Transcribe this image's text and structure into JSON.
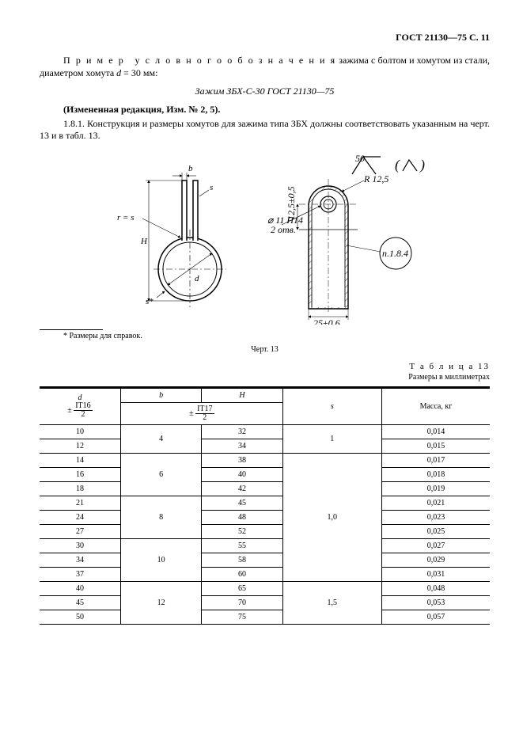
{
  "header": {
    "standard": "ГОСТ 21130—75 С. 11"
  },
  "text": {
    "p1a": "П р и м е р",
    "p1b": "у с л о в н о г о   о б о з н а ч е н и я",
    "p1c": " зажима с болтом и хомутом из стали, диаметром хомута ",
    "p1d": "d",
    "p1e": " = 30 мм:",
    "caption_item": "Зажим ЗБХ-С-30 ГОСТ 21130—75",
    "changed": "(Измененная редакция, Изм. № 2, 5).",
    "p2": "1.8.1.  Конструкция и размеры хомутов для зажима типа ЗБХ должны соответствовать указанным на черт. 13 и в табл. 13.",
    "footnote": "* Размеры для справок.",
    "fig_caption": "Черт. 13",
    "table_label": "Т а б л и ц а 13",
    "table_units": "Размеры в миллиметрах",
    "surface_val": "50"
  },
  "diagram": {
    "labels": {
      "b": "b",
      "s": "s",
      "H": "H",
      "r_eq_s": "r = s",
      "s_star": "s*",
      "d": "d",
      "top_dim": "12,5±0,5",
      "hole": "⌀ 11 H14",
      "hole2": "2 отв.",
      "radius": "R 12,5",
      "bottom": "25±0,6",
      "bubble": "п.1.8.4"
    }
  },
  "table": {
    "headers": {
      "d": "d",
      "d_tol_num": "IT16",
      "d_tol_den": "2",
      "b": "b",
      "H": "H",
      "bh_tol_num": "IT17",
      "bh_tol_den": "2",
      "s": "s",
      "mass": "Масса, кг"
    },
    "rows": [
      {
        "d": "10",
        "b": "4",
        "b_span": 2,
        "H": "32",
        "s": "1",
        "s_span": 2,
        "m": "0,014"
      },
      {
        "d": "12",
        "H": "34",
        "m": "0,015"
      },
      {
        "d": "14",
        "b": "6",
        "b_span": 3,
        "H": "38",
        "s": "1,0",
        "s_span": 9,
        "m": "0,017"
      },
      {
        "d": "16",
        "H": "40",
        "m": "0,018"
      },
      {
        "d": "18",
        "H": "42",
        "m": "0,019"
      },
      {
        "d": "21",
        "b": "8",
        "b_span": 3,
        "H": "45",
        "m": "0,021"
      },
      {
        "d": "24",
        "H": "48",
        "m": "0,023"
      },
      {
        "d": "27",
        "H": "52",
        "m": "0,025"
      },
      {
        "d": "30",
        "b": "10",
        "b_span": 3,
        "H": "55",
        "m": "0,027"
      },
      {
        "d": "34",
        "H": "58",
        "m": "0,029"
      },
      {
        "d": "37",
        "H": "60",
        "m": "0,031"
      },
      {
        "d": "40",
        "b": "12",
        "b_span": 3,
        "H": "65",
        "s": "1,5",
        "s_span": 3,
        "m": "0,048"
      },
      {
        "d": "45",
        "H": "70",
        "m": "0,053"
      },
      {
        "d": "50",
        "H": "75",
        "m": "0,057"
      }
    ]
  },
  "style": {
    "line_color": "#000000",
    "bg": "#ffffff",
    "font_body": 12,
    "font_table": 10
  }
}
